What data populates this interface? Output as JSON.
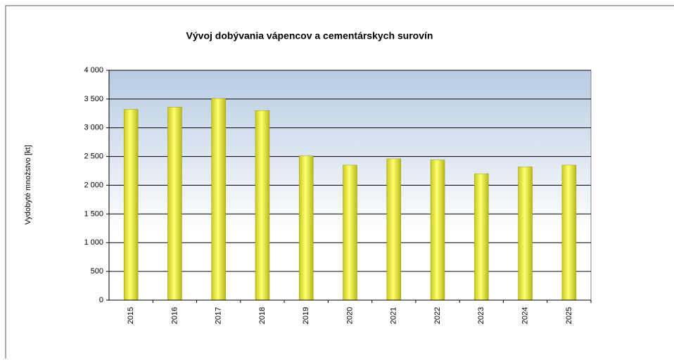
{
  "chart_data": {
    "type": "bar",
    "title": "Vývoj  dobývania vápencov a cementárskych surovín",
    "y_label": "Vydobyté množstvo [kt]",
    "categories": [
      "2015",
      "2016",
      "2017",
      "2018",
      "2019",
      "2020",
      "2021",
      "2022",
      "2023",
      "2024",
      "2025"
    ],
    "values": [
      3320,
      3360,
      3510,
      3300,
      2510,
      2350,
      2460,
      2440,
      2200,
      2320,
      2350
    ],
    "color": "#f0f040",
    "ylim": [
      0,
      4000
    ],
    "yticks": [
      0,
      500,
      {
        "value": 1000,
        "label": "1 000"
      },
      {
        "value": 1500,
        "label": "1 500"
      },
      {
        "value": 2000,
        "label": "2 000"
      },
      {
        "value": 2500,
        "label": "2 500"
      },
      {
        "value": 3000,
        "label": "3 000"
      },
      {
        "value": 3500,
        "label": "3 500"
      },
      {
        "value": 4000,
        "label": "4 000"
      }
    ],
    "grid": true
  }
}
